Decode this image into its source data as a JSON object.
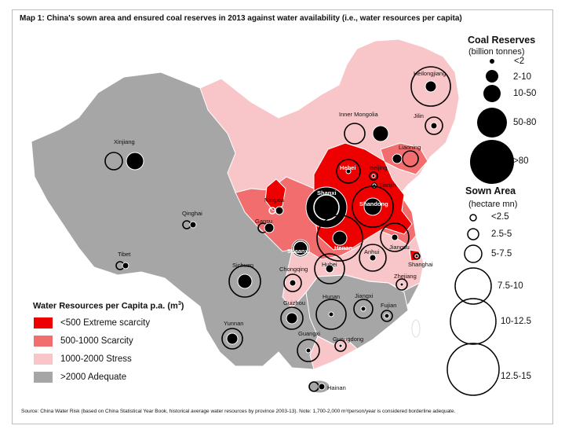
{
  "map": {
    "title": "Map 1: China's sown area and ensured coal reserves in 2013 against water availability (i.e., water resources per capita)",
    "source": "Source: China Water Risk (based on China Statistical Year Book, historical average water resources by province 2003-13). Note: 1,700-2,000 m³/person/year is considered borderline adequate.",
    "colors": {
      "extreme_scarcity": "#ee0000",
      "scarcity": "#f26d6d",
      "stress": "#f8c6c8",
      "adequate": "#a6a6a6",
      "coal_marker": "#000000",
      "sown_area_marker": "#ffffff"
    }
  },
  "provinces": [
    {
      "name": "Xinjiang"
    },
    {
      "name": "Tibet"
    },
    {
      "name": "Qinghai"
    },
    {
      "name": "Inner Mongolia"
    },
    {
      "name": "Heilongjiang"
    },
    {
      "name": "Jilin"
    },
    {
      "name": "Liaoning"
    },
    {
      "name": "Hebei"
    },
    {
      "name": "Beijing"
    },
    {
      "name": "Tianjin"
    },
    {
      "name": "Shanxi"
    },
    {
      "name": "Shandong"
    },
    {
      "name": "Henan"
    },
    {
      "name": "Shaanxi"
    },
    {
      "name": "Ningxia"
    },
    {
      "name": "Gansu"
    },
    {
      "name": "Jiangsu"
    },
    {
      "name": "Shanghai"
    },
    {
      "name": "Anhui"
    },
    {
      "name": "Hubei"
    },
    {
      "name": "Zhejiang"
    },
    {
      "name": "Sichuan"
    },
    {
      "name": "Chongqing"
    },
    {
      "name": "Hunan"
    },
    {
      "name": "Jiangxi"
    },
    {
      "name": "Fujian"
    },
    {
      "name": "Guizhou"
    },
    {
      "name": "Yunnan"
    },
    {
      "name": "Guangxi"
    },
    {
      "name": "Guangdong"
    },
    {
      "name": "Hainan"
    }
  ],
  "legend_water": {
    "title": "Water Resources per Capita p.a. (m",
    "title_sup": "3",
    "title_end": ")",
    "items": [
      {
        "label": "<500 Extreme scarcity",
        "color": "#ee0000"
      },
      {
        "label": "500-1000 Scarcity",
        "color": "#f26d6d"
      },
      {
        "label": "1000-2000 Stress",
        "color": "#f8c6c8"
      },
      {
        "label": ">2000 Adequate",
        "color": "#a6a6a6"
      }
    ]
  },
  "legend_coal": {
    "title": "Coal Reserves",
    "subtitle": "(billion tonnes)",
    "items": [
      {
        "label": "<2"
      },
      {
        "label": "2-10"
      },
      {
        "label": "10-50"
      },
      {
        "label": "50-80"
      },
      {
        "label": ">80"
      }
    ]
  },
  "legend_sown": {
    "title": "Sown Area",
    "subtitle": "(hectare mn)",
    "items": [
      {
        "label": "<2.5"
      },
      {
        "label": "2.5-5"
      },
      {
        "label": "5-7.5"
      },
      {
        "label": "7.5-10"
      },
      {
        "label": "10-12.5"
      },
      {
        "label": "12.5-15"
      }
    ]
  }
}
